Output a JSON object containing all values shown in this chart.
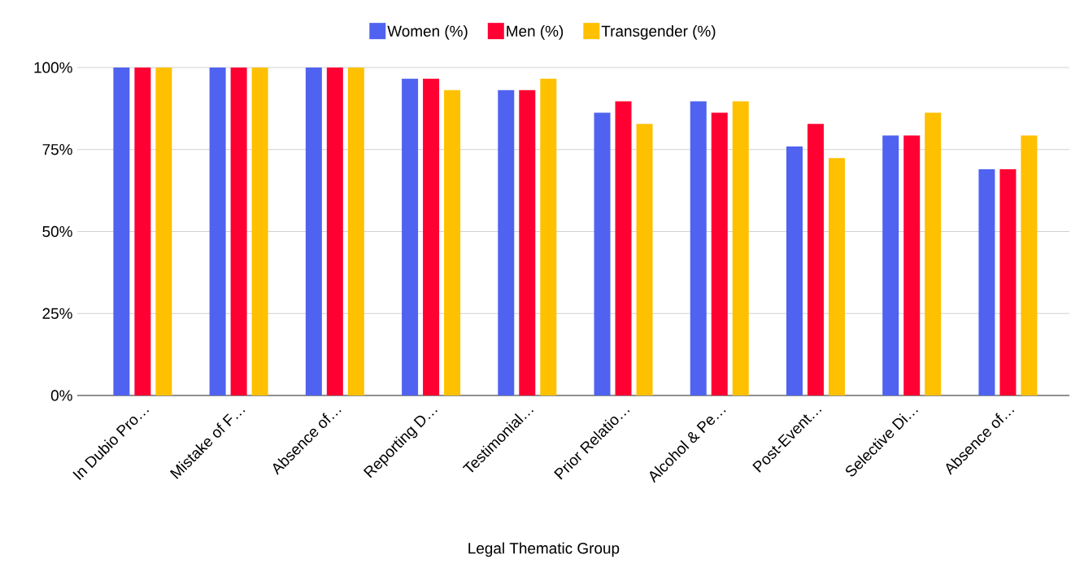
{
  "chart_data": {
    "type": "bar",
    "xlabel": "Legal Thematic Group",
    "categories": [
      "In Dubio Pro…",
      "Mistake of F…",
      "Absence of…",
      "Reporting D…",
      "Testimonial…",
      "Prior Relatio…",
      "Alcohol & Pe…",
      "Post-Event…",
      "Selective Di…",
      "Absence of…"
    ],
    "series": [
      {
        "name": "Women (%)",
        "color": "#4f63f0",
        "values": [
          100,
          100,
          100,
          96.6,
          93.1,
          86.2,
          89.7,
          75.9,
          79.3,
          69.0
        ]
      },
      {
        "name": "Men (%)",
        "color": "#ff0033",
        "values": [
          100,
          100,
          100,
          96.6,
          93.1,
          89.7,
          86.2,
          82.8,
          79.3,
          69.0
        ]
      },
      {
        "name": "Transgender (%)",
        "color": "#ffc000",
        "values": [
          100,
          100,
          100,
          93.1,
          96.6,
          82.8,
          89.7,
          72.4,
          86.2,
          79.3
        ]
      }
    ],
    "ylim": [
      0,
      100
    ],
    "yticks": [
      {
        "value": 0,
        "label": "0%"
      },
      {
        "value": 25,
        "label": "25%"
      },
      {
        "value": 50,
        "label": "50%"
      },
      {
        "value": 75,
        "label": "75%"
      },
      {
        "value": 100,
        "label": "100%"
      }
    ],
    "grid": "y",
    "legend": "top"
  }
}
